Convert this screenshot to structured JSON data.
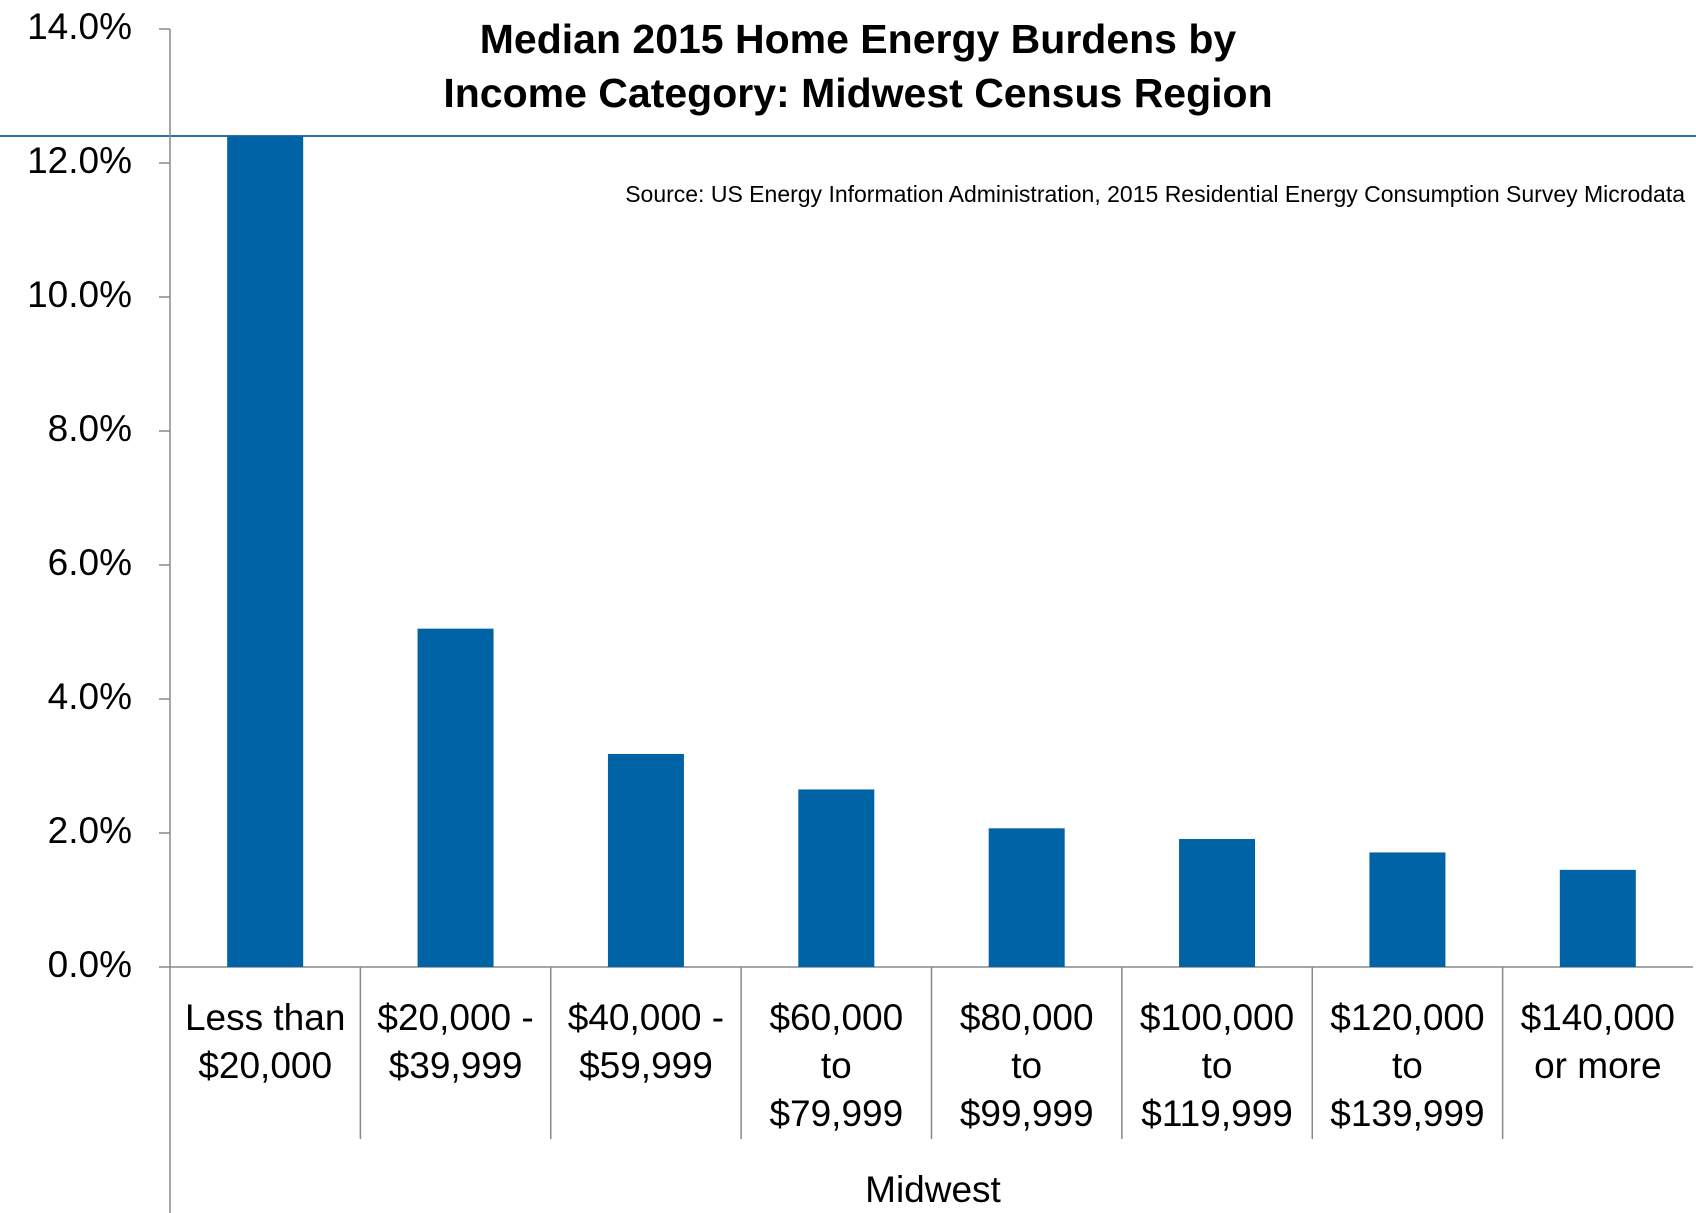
{
  "chart_data": {
    "type": "bar",
    "title": [
      "Median 2015 Home Energy Burdens by",
      "Income Category: Midwest Census Region"
    ],
    "annotation": "Source: US Energy Information Administration, 2015 Residential Energy Consumption Survey Microdata",
    "x_label": "Midwest",
    "categories": [
      "Less than\n$20,000",
      "$20,000 -\n$39,999",
      "$40,000 -\n$59,999",
      "$60,000\nto\n$79,999",
      "$80,000\nto\n$99,999",
      "$100,000\nto\n$119,999",
      "$120,000\nto\n$139,999",
      "$140,000\nor more"
    ],
    "values": [
      12.4,
      5.05,
      3.18,
      2.65,
      2.07,
      1.91,
      1.71,
      1.45
    ],
    "color": "#0063a6",
    "ylim": [
      0,
      14
    ],
    "yticks": [
      {
        "value": 0,
        "label": "0.0%"
      },
      {
        "value": 2,
        "label": "2.0%"
      },
      {
        "value": 4,
        "label": "4.0%"
      },
      {
        "value": 6,
        "label": "6.0%"
      },
      {
        "value": 8,
        "label": "8.0%"
      },
      {
        "value": 10,
        "label": "10.0%"
      },
      {
        "value": 12,
        "label": "12.0%"
      },
      {
        "value": 14,
        "label": "14.0%"
      }
    ],
    "grid": false
  }
}
